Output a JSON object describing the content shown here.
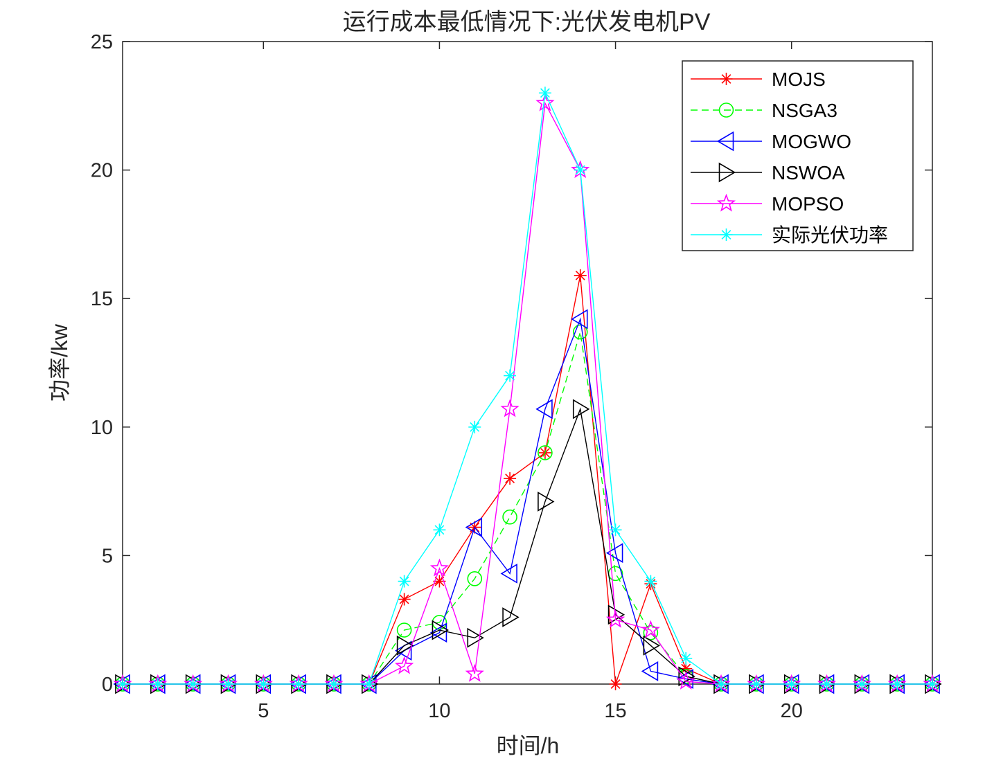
{
  "chart_data": {
    "type": "line",
    "title": "运行成本最低情况下:光伏发电机PV",
    "xlabel": "时间/h",
    "ylabel": "功率/kw",
    "xlim": [
      1,
      24
    ],
    "ylim": [
      0,
      25
    ],
    "xticks": [
      5,
      10,
      15,
      20
    ],
    "yticks": [
      0,
      5,
      10,
      15,
      20,
      25
    ],
    "x": [
      1,
      2,
      3,
      4,
      5,
      6,
      7,
      8,
      9,
      10,
      11,
      12,
      13,
      14,
      15,
      16,
      17,
      18,
      19,
      20,
      21,
      22,
      23,
      24
    ],
    "grid": false,
    "legend_position": "top-right",
    "series": [
      {
        "name": "MOJS",
        "color": "#ff0000",
        "marker": "asterisk",
        "dash": "solid",
        "values": [
          0,
          0,
          0,
          0,
          0,
          0,
          0,
          0,
          3.3,
          4.0,
          6.1,
          8.0,
          9.0,
          15.9,
          0,
          3.9,
          0.6,
          0,
          0,
          0,
          0,
          0,
          0,
          0
        ]
      },
      {
        "name": "NSGA3",
        "color": "#00ff00",
        "marker": "circle",
        "dash": "dashed",
        "values": [
          0,
          0,
          0,
          0,
          0,
          0,
          0,
          0,
          2.1,
          2.4,
          4.1,
          6.5,
          9.0,
          13.7,
          4.3,
          2.0,
          0.3,
          0,
          0,
          0,
          0,
          0,
          0,
          0
        ]
      },
      {
        "name": "MOGWO",
        "color": "#0000ff",
        "marker": "triangle-left",
        "dash": "solid",
        "values": [
          0,
          0,
          0,
          0,
          0,
          0,
          0,
          0,
          1.3,
          2.0,
          6.1,
          4.3,
          10.7,
          14.2,
          5.1,
          0.5,
          0.2,
          0,
          0,
          0,
          0,
          0,
          0,
          0
        ]
      },
      {
        "name": "NSWOA",
        "color": "#000000",
        "marker": "triangle-right",
        "dash": "solid",
        "values": [
          0,
          0,
          0,
          0,
          0,
          0,
          0,
          0,
          1.5,
          2.1,
          1.8,
          2.6,
          7.1,
          10.7,
          2.7,
          1.5,
          0.3,
          0,
          0,
          0,
          0,
          0,
          0,
          0
        ]
      },
      {
        "name": "MOPSO",
        "color": "#ff00ff",
        "marker": "pentagram",
        "dash": "solid",
        "values": [
          0,
          0,
          0,
          0,
          0,
          0,
          0,
          0,
          0.7,
          4.5,
          0.4,
          10.7,
          22.6,
          20.0,
          2.5,
          2.1,
          0.1,
          0,
          0,
          0,
          0,
          0,
          0,
          0
        ]
      },
      {
        "name": "实际光伏功率",
        "color": "#00ffff",
        "marker": "asterisk",
        "dash": "solid",
        "values": [
          0,
          0,
          0,
          0,
          0,
          0,
          0,
          0,
          4.0,
          6.0,
          10.0,
          12.0,
          23.0,
          20.0,
          6.0,
          4.0,
          1.0,
          0,
          0,
          0,
          0,
          0,
          0,
          0
        ]
      }
    ]
  }
}
